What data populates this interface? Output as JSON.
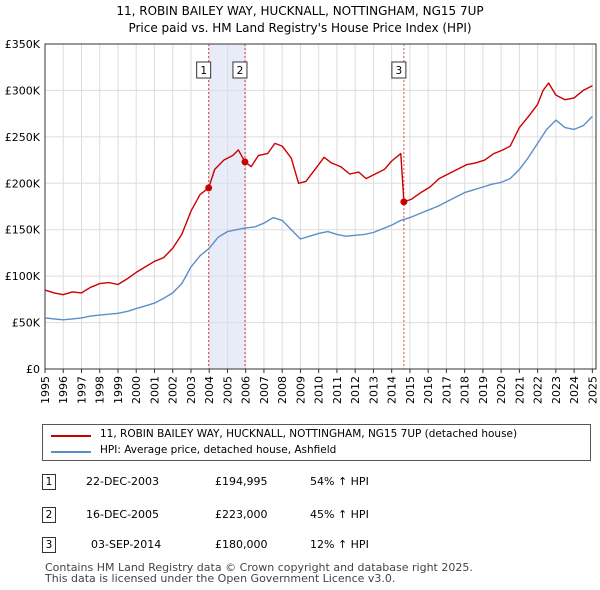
{
  "chart_data": {
    "type": "line",
    "title": "11, ROBIN BAILEY WAY, HUCKNALL, NOTTINGHAM, NG15 7UP",
    "subtitle": "Price paid vs. HM Land Registry's House Price Index (HPI)",
    "x_ticks": [
      "1995",
      "1996",
      "1997",
      "1998",
      "1999",
      "2000",
      "2001",
      "2002",
      "2003",
      "2004",
      "2005",
      "2006",
      "2007",
      "2008",
      "2009",
      "2010",
      "2011",
      "2012",
      "2013",
      "2014",
      "2015",
      "2016",
      "2017",
      "2018",
      "2019",
      "2020",
      "2021",
      "2022",
      "2023",
      "2024",
      "2025"
    ],
    "y_ticks": [
      "£0",
      "£50K",
      "£100K",
      "£150K",
      "£200K",
      "£250K",
      "£300K",
      "£350K"
    ],
    "xlim": [
      1995,
      2025.2
    ],
    "ylim": [
      0,
      350000
    ],
    "grid": true,
    "series": [
      {
        "name": "11, ROBIN BAILEY WAY, HUCKNALL, NOTTINGHAM, NG15 7UP (detached house)",
        "color": "#cc0000",
        "points": [
          [
            1995,
            85000
          ],
          [
            1995.5,
            82000
          ],
          [
            1996,
            80000
          ],
          [
            1996.5,
            83000
          ],
          [
            1997,
            82000
          ],
          [
            1997.5,
            88000
          ],
          [
            1998,
            92000
          ],
          [
            1998.5,
            93000
          ],
          [
            1999,
            91000
          ],
          [
            1999.5,
            97000
          ],
          [
            2000,
            104000
          ],
          [
            2000.5,
            110000
          ],
          [
            2001,
            116000
          ],
          [
            2001.5,
            120000
          ],
          [
            2002,
            130000
          ],
          [
            2002.5,
            145000
          ],
          [
            2003,
            170000
          ],
          [
            2003.5,
            188000
          ],
          [
            2003.97,
            194995
          ],
          [
            2004.3,
            215000
          ],
          [
            2004.8,
            225000
          ],
          [
            2005.3,
            230000
          ],
          [
            2005.6,
            236000
          ],
          [
            2005.96,
            223000
          ],
          [
            2006.3,
            218000
          ],
          [
            2006.7,
            230000
          ],
          [
            2007.2,
            232000
          ],
          [
            2007.6,
            243000
          ],
          [
            2008,
            240000
          ],
          [
            2008.5,
            227000
          ],
          [
            2008.9,
            200000
          ],
          [
            2009.3,
            202000
          ],
          [
            2009.8,
            215000
          ],
          [
            2010.3,
            228000
          ],
          [
            2010.7,
            222000
          ],
          [
            2011.2,
            218000
          ],
          [
            2011.7,
            210000
          ],
          [
            2012.2,
            212000
          ],
          [
            2012.6,
            205000
          ],
          [
            2013.1,
            210000
          ],
          [
            2013.6,
            215000
          ],
          [
            2014,
            224000
          ],
          [
            2014.5,
            232000
          ],
          [
            2014.67,
            180000
          ],
          [
            2015.1,
            183000
          ],
          [
            2015.6,
            190000
          ],
          [
            2016.1,
            196000
          ],
          [
            2016.6,
            205000
          ],
          [
            2017.1,
            210000
          ],
          [
            2017.6,
            215000
          ],
          [
            2018.1,
            220000
          ],
          [
            2018.6,
            222000
          ],
          [
            2019.1,
            225000
          ],
          [
            2019.6,
            232000
          ],
          [
            2020.1,
            236000
          ],
          [
            2020.5,
            240000
          ],
          [
            2021,
            260000
          ],
          [
            2021.5,
            272000
          ],
          [
            2022,
            285000
          ],
          [
            2022.3,
            300000
          ],
          [
            2022.6,
            308000
          ],
          [
            2023,
            295000
          ],
          [
            2023.5,
            290000
          ],
          [
            2024,
            292000
          ],
          [
            2024.5,
            300000
          ],
          [
            2025,
            305000
          ]
        ]
      },
      {
        "name": "HPI: Average price, detached house, Ashfield",
        "color": "#5a8fc9",
        "points": [
          [
            1995,
            55000
          ],
          [
            1995.5,
            54000
          ],
          [
            1996,
            53000
          ],
          [
            1996.5,
            54000
          ],
          [
            1997,
            55000
          ],
          [
            1997.5,
            57000
          ],
          [
            1998,
            58000
          ],
          [
            1998.5,
            59000
          ],
          [
            1999,
            60000
          ],
          [
            1999.5,
            62000
          ],
          [
            2000,
            65000
          ],
          [
            2000.5,
            68000
          ],
          [
            2001,
            71000
          ],
          [
            2001.5,
            76000
          ],
          [
            2002,
            82000
          ],
          [
            2002.5,
            92000
          ],
          [
            2003,
            110000
          ],
          [
            2003.5,
            122000
          ],
          [
            2004,
            130000
          ],
          [
            2004.5,
            142000
          ],
          [
            2005,
            148000
          ],
          [
            2005.5,
            150000
          ],
          [
            2006,
            152000
          ],
          [
            2006.5,
            153000
          ],
          [
            2007,
            157000
          ],
          [
            2007.5,
            163000
          ],
          [
            2008,
            160000
          ],
          [
            2008.5,
            150000
          ],
          [
            2009,
            140000
          ],
          [
            2009.5,
            143000
          ],
          [
            2010,
            146000
          ],
          [
            2010.5,
            148000
          ],
          [
            2011,
            145000
          ],
          [
            2011.5,
            143000
          ],
          [
            2012,
            144000
          ],
          [
            2012.5,
            145000
          ],
          [
            2013,
            147000
          ],
          [
            2013.5,
            151000
          ],
          [
            2014,
            155000
          ],
          [
            2014.5,
            160000
          ],
          [
            2015,
            163000
          ],
          [
            2015.5,
            167000
          ],
          [
            2016,
            171000
          ],
          [
            2016.5,
            175000
          ],
          [
            2017,
            180000
          ],
          [
            2017.5,
            185000
          ],
          [
            2018,
            190000
          ],
          [
            2018.5,
            193000
          ],
          [
            2019,
            196000
          ],
          [
            2019.5,
            199000
          ],
          [
            2020,
            201000
          ],
          [
            2020.5,
            205000
          ],
          [
            2021,
            215000
          ],
          [
            2021.5,
            228000
          ],
          [
            2022,
            243000
          ],
          [
            2022.5,
            258000
          ],
          [
            2023,
            268000
          ],
          [
            2023.5,
            260000
          ],
          [
            2024,
            258000
          ],
          [
            2024.5,
            262000
          ],
          [
            2025,
            272000
          ]
        ]
      }
    ],
    "transactions": [
      {
        "id": "1",
        "date": "22-DEC-2003",
        "price": "£194,995",
        "hpi": "54% ↑ HPI",
        "x": 2003.97,
        "y": 194995
      },
      {
        "id": "2",
        "date": "16-DEC-2005",
        "price": "£223,000",
        "hpi": "45% ↑ HPI",
        "x": 2005.96,
        "y": 223000
      },
      {
        "id": "3",
        "date": "03-SEP-2014",
        "price": "£180,000",
        "hpi": "12% ↑ HPI",
        "x": 2014.67,
        "y": 180000
      }
    ],
    "shaded_ranges": [
      [
        2003.97,
        2005.96
      ]
    ],
    "shaded_color": "#e8ecf8"
  },
  "legend": {
    "property_label": "11, ROBIN BAILEY WAY, HUCKNALL, NOTTINGHAM, NG15 7UP (detached house)",
    "hpi_label": "HPI: Average price, detached house, Ashfield"
  },
  "footer": {
    "line1": "Contains HM Land Registry data © Crown copyright and database right 2025.",
    "line2": "This data is licensed under the Open Government Licence v3.0."
  }
}
